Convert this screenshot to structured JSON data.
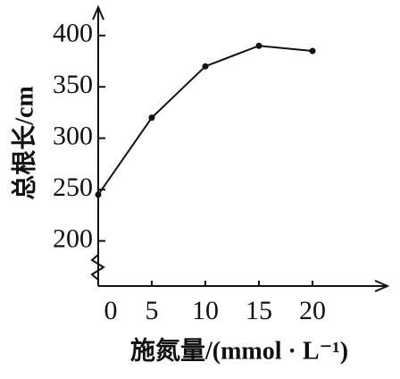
{
  "chart_data": {
    "type": "line",
    "y_label": "总根长/cm",
    "x_label": "施氮量/(mmol · L⁻¹)",
    "x": [
      0,
      5,
      10,
      15,
      20
    ],
    "values": [
      245,
      320,
      370,
      390,
      385
    ],
    "color": "#111111",
    "xlim": [
      0,
      27
    ],
    "xticks": [
      0,
      5,
      10,
      15,
      20
    ],
    "ylim": [
      150,
      425
    ],
    "yticks": [
      200,
      250,
      300,
      350,
      400
    ]
  }
}
